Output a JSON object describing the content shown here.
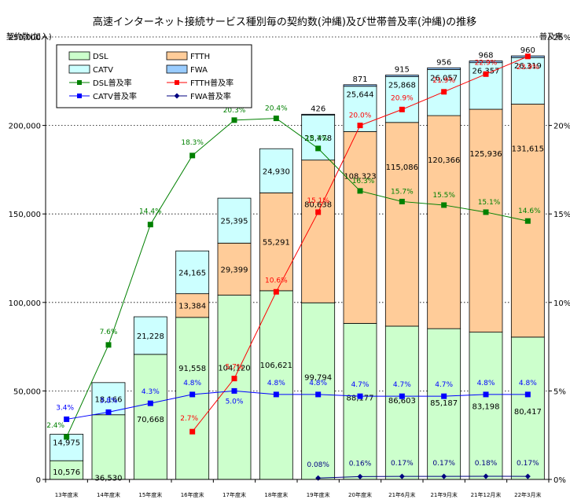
{
  "chart_data": {
    "type": "bar",
    "title": "高速インターネット接続サービス種別毎の契約数(沖縄)及び世帯普及率(沖縄)の推移",
    "ylabel_left": "契約数(加入)",
    "ylabel_right": "普及率",
    "ylim": [
      0,
      250000
    ],
    "ylim_right": [
      0,
      25
    ],
    "left_ticks": [
      "0",
      "50,000",
      "100,000",
      "150,000",
      "200,000",
      "250,000"
    ],
    "right_ticks": [
      "0%",
      "5%",
      "10%",
      "15%",
      "20%",
      "25%"
    ],
    "categories": [
      "13年度末",
      "14年度末",
      "15年度末",
      "16年度末",
      "17年度末",
      "18年度末",
      "19年度末",
      "20年度末",
      "21年6月末",
      "21年9月末",
      "21年12月末",
      "22年3月末"
    ],
    "bar_series": [
      {
        "name": "DSL",
        "color": "#ccffcc",
        "values": [
          10576,
          36530,
          70668,
          91558,
          104120,
          106621,
          99794,
          88177,
          86603,
          85187,
          83198,
          80417
        ],
        "labels": [
          "10,576",
          "36,530",
          "70,668",
          "91,558",
          "104,120",
          "106,621",
          "99,794",
          "88,177",
          "86,603",
          "85,187",
          "83,198",
          "80,417"
        ]
      },
      {
        "name": "FTTH",
        "color": "#ffcc99",
        "values": [
          0,
          0,
          0,
          13384,
          29399,
          55291,
          80638,
          108323,
          115086,
          120366,
          125936,
          131615
        ],
        "labels": [
          "",
          "",
          "",
          "13,384",
          "29,399",
          "55,291",
          "80,638",
          "108,323",
          "115,086",
          "120,366",
          "125,936",
          "131,615"
        ]
      },
      {
        "name": "CATV",
        "color": "#ccffff",
        "values": [
          14975,
          18166,
          21228,
          24165,
          25395,
          24930,
          25478,
          25644,
          25868,
          26057,
          26357,
          26319
        ],
        "labels": [
          "14,975",
          "18,166",
          "21,228",
          "24,165",
          "25,395",
          "24,930",
          "25,478",
          "25,644",
          "25,868",
          "26,057",
          "26,357",
          "26,319"
        ]
      },
      {
        "name": "FWA",
        "color": "#99ccff",
        "values": [
          0,
          0,
          0,
          0,
          0,
          0,
          426,
          871,
          915,
          956,
          968,
          960
        ],
        "labels": [
          "",
          "",
          "",
          "",
          "",
          "",
          "426",
          "871",
          "915",
          "956",
          "968",
          "960"
        ]
      }
    ],
    "line_series": [
      {
        "name": "DSL普及率",
        "color": "#008000",
        "marker": "square",
        "values": [
          2.4,
          7.6,
          14.4,
          18.3,
          20.3,
          20.4,
          18.7,
          16.3,
          15.7,
          15.5,
          15.1,
          14.6
        ],
        "labels": [
          "2.4%",
          "7.6%",
          "14.4%",
          "18.3%",
          "20.3%",
          "20.4%",
          "18.7%",
          "16.3%",
          "15.7%",
          "15.5%",
          "15.1%",
          "14.6%"
        ]
      },
      {
        "name": "FTTH普及率",
        "color": "#ff0000",
        "marker": "square",
        "values": [
          null,
          null,
          null,
          2.7,
          5.7,
          10.6,
          15.1,
          20.0,
          20.9,
          21.9,
          22.9,
          23.9
        ],
        "labels": [
          "",
          "",
          "",
          "2.7%",
          "5.7%",
          "10.6%",
          "15.1%",
          "20.0%",
          "20.9%",
          "21.9%",
          "22.9%",
          "23.9%"
        ]
      },
      {
        "name": "CATV普及率",
        "color": "#0000ff",
        "marker": "square",
        "values": [
          3.4,
          3.8,
          4.3,
          4.8,
          5.0,
          4.8,
          4.8,
          4.7,
          4.7,
          4.7,
          4.8,
          4.8
        ],
        "labels": [
          "3.4%",
          "3.8%",
          "4.3%",
          "4.8%",
          "5.0%",
          "4.8%",
          "4.8%",
          "4.7%",
          "4.7%",
          "4.7%",
          "4.8%",
          "4.8%"
        ]
      },
      {
        "name": "FWA普及率",
        "color": "#000080",
        "marker": "diamond",
        "values": [
          null,
          null,
          null,
          null,
          null,
          null,
          0.08,
          0.16,
          0.17,
          0.17,
          0.18,
          0.17
        ],
        "labels": [
          "",
          "",
          "",
          "",
          "",
          "",
          "0.08%",
          "0.16%",
          "0.17%",
          "0.17%",
          "0.18%",
          "0.17%"
        ]
      }
    ],
    "legend": {
      "placement": "top-left",
      "order": [
        "DSL",
        "FTTH",
        "CATV",
        "FWA",
        "DSL普及率",
        "FTTH普及率",
        "CATV普及率",
        "FWA普及率"
      ]
    },
    "grid": "horizontal-dotted"
  }
}
